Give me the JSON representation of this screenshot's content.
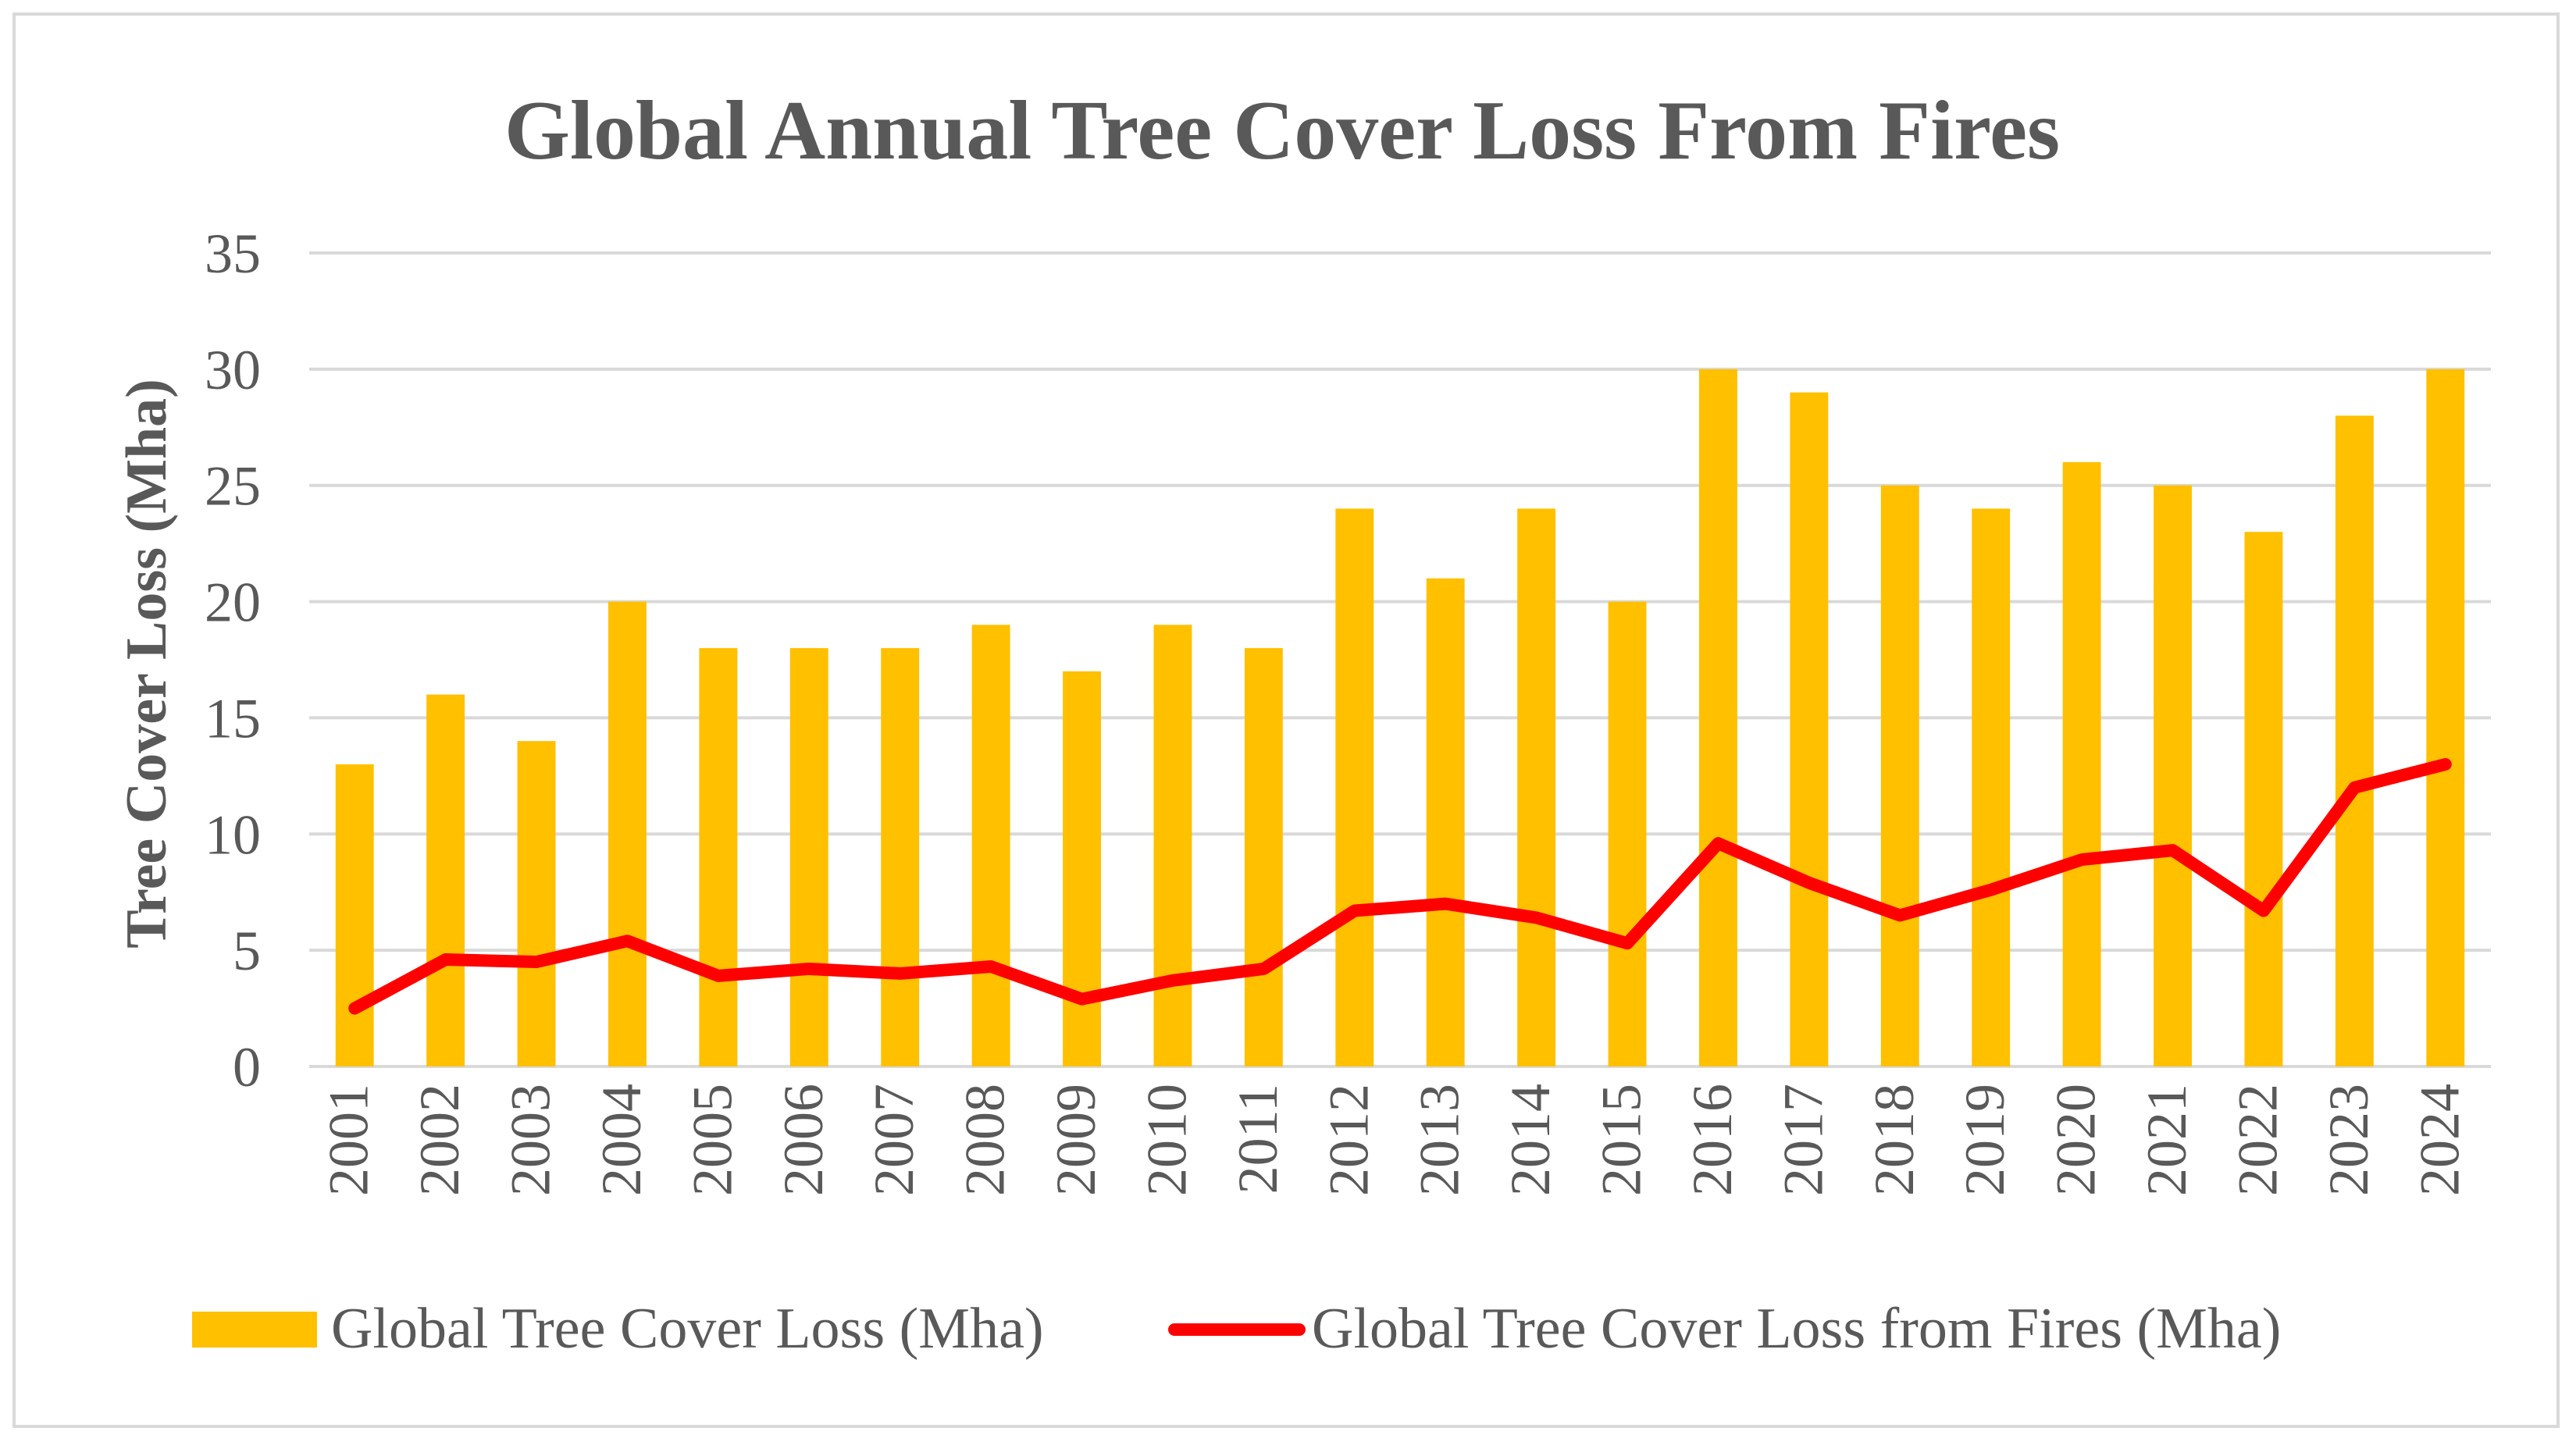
{
  "chart_data": {
    "type": "bar",
    "title": "Global Annual Tree Cover Loss From Fires",
    "xlabel": "",
    "ylabel": "Tree Cover Loss (Mha)",
    "ylim": [
      0,
      35
    ],
    "yticks": [
      0,
      5,
      10,
      15,
      20,
      25,
      30,
      35
    ],
    "grid": true,
    "legend_position": "bottom",
    "categories": [
      "2001",
      "2002",
      "2003",
      "2004",
      "2005",
      "2006",
      "2007",
      "2008",
      "2009",
      "2010",
      "2011",
      "2012",
      "2013",
      "2014",
      "2015",
      "2016",
      "2017",
      "2018",
      "2019",
      "2020",
      "2021",
      "2022",
      "2023",
      "2024"
    ],
    "series": [
      {
        "name": "Global Tree Cover Loss (Mha)",
        "type": "bar",
        "color": "#ffc000",
        "values": [
          13,
          16,
          14,
          20,
          18,
          18,
          18,
          19,
          17,
          19,
          18,
          24,
          21,
          24,
          20,
          30,
          29,
          25,
          24,
          26,
          25,
          23,
          28,
          30
        ]
      },
      {
        "name": "Global Tree Cover Loss from Fires (Mha)",
        "type": "line",
        "color": "#ff0000",
        "values": [
          2.5,
          4.6,
          4.5,
          5.4,
          3.9,
          4.2,
          4.0,
          4.3,
          2.9,
          3.7,
          4.2,
          6.7,
          7.0,
          6.4,
          5.3,
          9.6,
          7.9,
          6.5,
          7.6,
          8.9,
          9.3,
          6.7,
          12.0,
          13.0
        ]
      }
    ]
  }
}
